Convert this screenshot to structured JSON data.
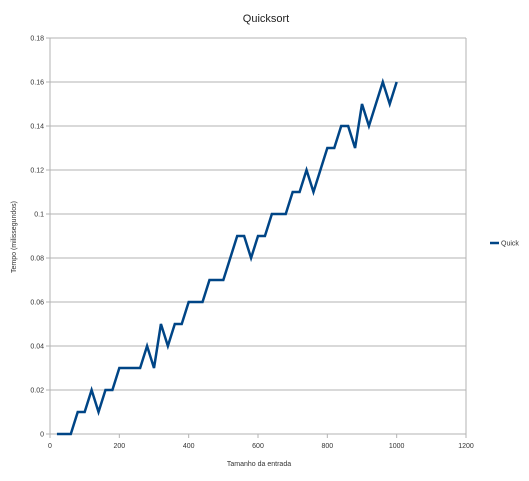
{
  "chart_data": {
    "type": "line",
    "title": "Quicksort",
    "xlabel": "Tamanho da entrada",
    "ylabel": "Tempo (milissegundos)",
    "xlim": [
      0,
      1200
    ],
    "ylim": [
      0,
      0.18
    ],
    "x_ticks": [
      "0",
      "200",
      "400",
      "600",
      "800",
      "1000",
      "1200"
    ],
    "y_ticks": [
      "0",
      "0.02",
      "0.04",
      "0.06",
      "0.08",
      "0.1",
      "0.12",
      "0.14",
      "0.16",
      "0.18"
    ],
    "grid": true,
    "legend_position": "right",
    "series": [
      {
        "name": "Quick",
        "color": "#004586",
        "x": [
          20,
          40,
          60,
          80,
          100,
          120,
          140,
          160,
          180,
          200,
          220,
          240,
          260,
          280,
          300,
          320,
          340,
          360,
          380,
          400,
          420,
          440,
          460,
          480,
          500,
          520,
          540,
          560,
          580,
          600,
          620,
          640,
          660,
          680,
          700,
          720,
          740,
          760,
          780,
          800,
          820,
          840,
          860,
          880,
          900,
          920,
          940,
          960,
          980,
          1000
        ],
        "y": [
          0,
          0,
          0,
          0.01,
          0.01,
          0.02,
          0.01,
          0.02,
          0.02,
          0.03,
          0.03,
          0.03,
          0.03,
          0.04,
          0.03,
          0.05,
          0.04,
          0.05,
          0.05,
          0.06,
          0.06,
          0.06,
          0.07,
          0.07,
          0.07,
          0.08,
          0.09,
          0.09,
          0.08,
          0.09,
          0.09,
          0.1,
          0.1,
          0.1,
          0.11,
          0.11,
          0.12,
          0.11,
          0.12,
          0.13,
          0.13,
          0.14,
          0.14,
          0.13,
          0.15,
          0.14,
          0.15,
          0.16,
          0.15,
          0.16
        ]
      }
    ]
  }
}
